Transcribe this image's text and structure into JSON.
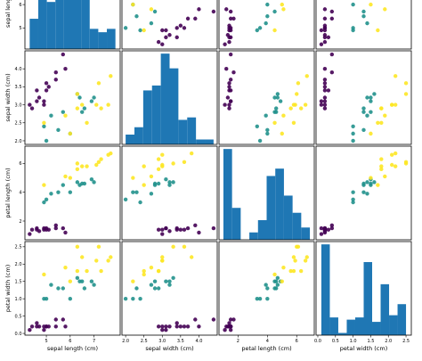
{
  "chart_data": {
    "type": "scatter_matrix",
    "columns": [
      "sepal length (cm)",
      "sepal width (cm)",
      "petal length (cm)",
      "petal width (cm)"
    ],
    "lims": [
      [
        4.1,
        8.1
      ],
      [
        1.9,
        4.5
      ],
      [
        0.7,
        7.2
      ],
      [
        -0.05,
        2.65
      ]
    ],
    "ticks": [
      [
        5,
        6,
        7
      ],
      [
        {
          "value": 2,
          "label": "2.0"
        },
        2.5,
        {
          "value": 3,
          "label": "3.0"
        },
        3.5,
        {
          "value": 4,
          "label": "4.0"
        }
      ],
      [
        2,
        4,
        6
      ],
      [
        {
          "value": 0,
          "label": "0.0"
        },
        0.5,
        {
          "value": 1,
          "label": "1.0"
        },
        1.5,
        {
          "value": 2,
          "label": "2.0"
        },
        2.5
      ]
    ],
    "hist_color": "#1f77b4",
    "histograms": [
      {
        "bins": [
          4.3,
          4.66,
          5.02,
          5.38,
          5.74,
          6.1,
          6.46,
          6.82,
          7.18,
          7.54,
          7.9
        ],
        "counts": [
          9,
          23,
          14,
          27,
          16,
          26,
          18,
          6,
          5,
          6
        ]
      },
      {
        "bins": [
          2.0,
          2.24,
          2.48,
          2.72,
          2.96,
          3.2,
          3.44,
          3.68,
          3.92,
          4.16,
          4.4
        ],
        "counts": [
          4,
          7,
          22,
          24,
          37,
          31,
          10,
          11,
          2,
          2
        ]
      },
      {
        "bins": [
          1.0,
          1.59,
          2.18,
          2.77,
          3.36,
          3.95,
          4.54,
          5.13,
          5.72,
          6.31,
          6.9
        ],
        "counts": [
          37,
          13,
          0,
          3,
          8,
          26,
          29,
          18,
          11,
          5
        ]
      },
      {
        "bins": [
          0.1,
          0.34,
          0.58,
          0.82,
          1.06,
          1.3,
          1.54,
          1.78,
          2.02,
          2.26,
          2.5
        ],
        "counts": [
          41,
          8,
          1,
          7,
          8,
          33,
          6,
          23,
          9,
          14
        ]
      }
    ],
    "series": [
      {
        "color": "#440154",
        "values": [
          [
            5.1,
            3.5,
            1.4,
            0.2
          ],
          [
            4.9,
            3.0,
            1.4,
            0.2
          ],
          [
            4.7,
            3.2,
            1.3,
            0.2
          ],
          [
            4.6,
            3.1,
            1.5,
            0.2
          ],
          [
            5.0,
            3.6,
            1.4,
            0.2
          ],
          [
            5.4,
            3.9,
            1.7,
            0.4
          ],
          [
            4.6,
            3.4,
            1.4,
            0.3
          ],
          [
            5.0,
            3.4,
            1.5,
            0.2
          ],
          [
            4.4,
            2.9,
            1.4,
            0.2
          ],
          [
            4.9,
            3.1,
            1.5,
            0.1
          ],
          [
            5.4,
            3.7,
            1.5,
            0.2
          ],
          [
            5.7,
            4.4,
            1.5,
            0.4
          ],
          [
            5.8,
            4.0,
            1.2,
            0.2
          ],
          [
            4.3,
            3.0,
            1.1,
            0.1
          ]
        ]
      },
      {
        "color": "#21918c",
        "values": [
          [
            7.0,
            3.2,
            4.7,
            1.4
          ],
          [
            6.4,
            3.2,
            4.5,
            1.5
          ],
          [
            6.9,
            3.1,
            4.9,
            1.5
          ],
          [
            5.5,
            2.3,
            4.0,
            1.3
          ],
          [
            6.5,
            2.8,
            4.6,
            1.5
          ],
          [
            5.7,
            2.8,
            4.5,
            1.3
          ],
          [
            6.3,
            3.3,
            4.7,
            1.6
          ],
          [
            4.9,
            2.4,
            3.3,
            1.0
          ],
          [
            6.6,
            2.9,
            4.6,
            1.3
          ],
          [
            5.2,
            2.7,
            3.9,
            1.4
          ],
          [
            5.0,
            2.0,
            3.5,
            1.0
          ],
          [
            6.0,
            2.2,
            4.0,
            1.0
          ]
        ]
      },
      {
        "color": "#fde725",
        "values": [
          [
            6.3,
            3.3,
            6.0,
            2.5
          ],
          [
            5.8,
            2.7,
            5.1,
            1.9
          ],
          [
            7.1,
            3.0,
            5.9,
            2.1
          ],
          [
            6.3,
            2.9,
            5.6,
            1.8
          ],
          [
            6.5,
            3.0,
            5.8,
            2.2
          ],
          [
            7.6,
            3.0,
            6.6,
            2.1
          ],
          [
            4.9,
            2.5,
            4.5,
            1.7
          ],
          [
            7.3,
            2.9,
            6.3,
            1.8
          ],
          [
            6.7,
            2.5,
            5.8,
            1.8
          ],
          [
            7.2,
            3.6,
            6.1,
            2.5
          ],
          [
            7.7,
            3.8,
            6.7,
            2.2
          ],
          [
            6.0,
            2.2,
            5.0,
            1.5
          ]
        ]
      }
    ]
  }
}
